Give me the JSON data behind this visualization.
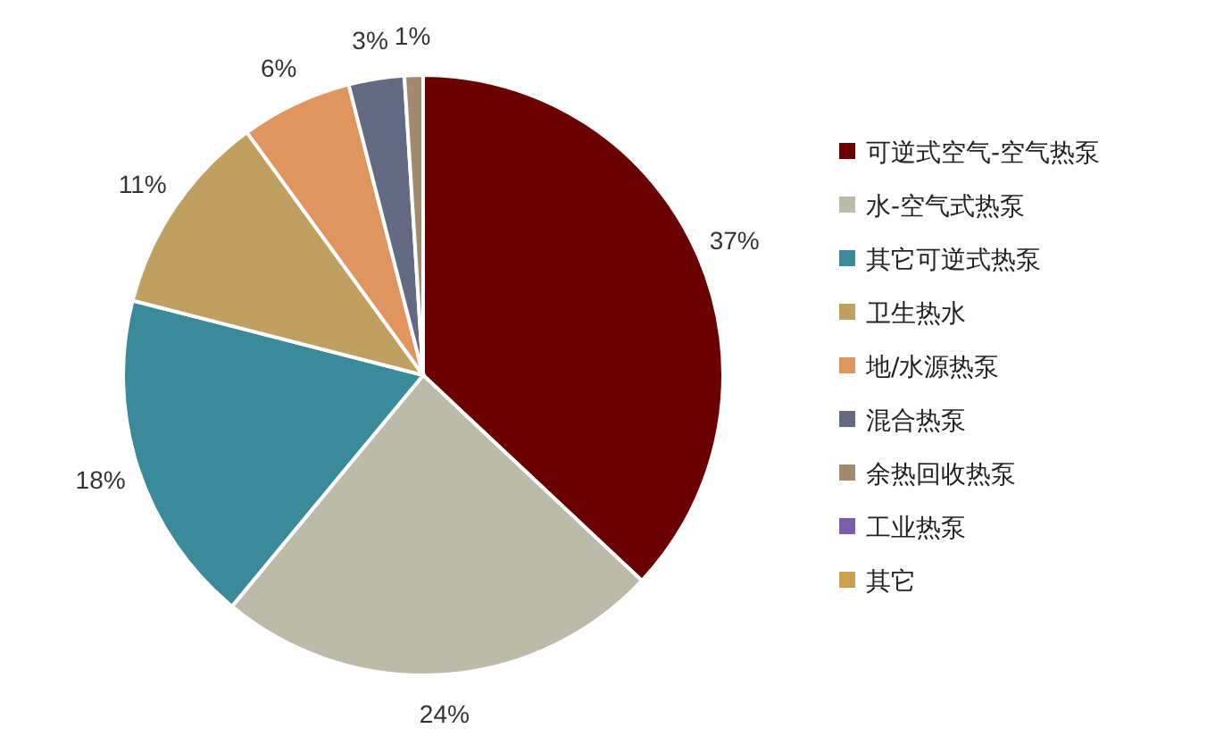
{
  "chart_data": {
    "type": "pie",
    "categories": [
      "可逆式空气-空气热泵",
      "水-空气式热泵",
      "其它可逆式热泵",
      "卫生热水",
      "地/水源热泵",
      "混合热泵",
      "余热回收热泵",
      "工业热泵",
      "其它"
    ],
    "values": [
      37,
      24,
      18,
      11,
      6,
      3,
      1,
      0,
      0
    ],
    "colors": [
      "#6b0000",
      "#bcbaa8",
      "#3a8a9a",
      "#c0a060",
      "#e0955f",
      "#646a82",
      "#a08c6c",
      "#7b5ea8",
      "#c8a050"
    ],
    "value_labels": [
      "37%",
      "24%",
      "18%",
      "11%",
      "6%",
      "3%",
      "1%",
      null,
      null
    ],
    "legend": "right"
  }
}
